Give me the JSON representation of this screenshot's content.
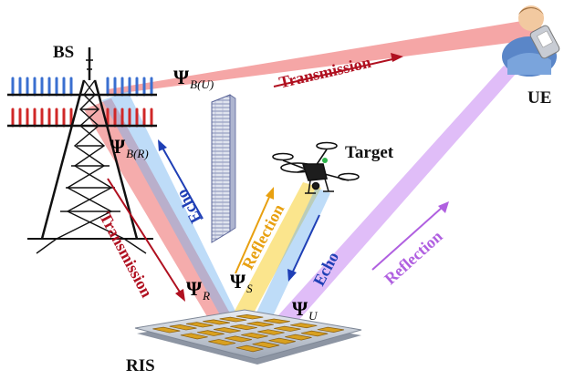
{
  "nodes": {
    "bs": "BS",
    "ue": "UE",
    "target": "Target",
    "ris": "RIS"
  },
  "channels": {
    "psi_symbol": "Ψ",
    "bu": "B(U)",
    "br": "B(R)",
    "r": "R",
    "s": "S",
    "u": "U"
  },
  "flows": {
    "transmission_top": "Transmission",
    "transmission_left": "Transmission",
    "echo_left": "Echo",
    "reflection_mid": "Reflection",
    "echo_right": "Echo",
    "reflection_right": "Reflection"
  },
  "colors": {
    "transmission": "#b01020",
    "echo": "#1f3fb5",
    "reflection_mid": "#e8a010",
    "reflection_right": "#b060e0",
    "beam_red": "#e83a3a",
    "beam_blue": "#6fb2f0",
    "beam_yellow": "#f7d030",
    "beam_purple": "#c27cf2",
    "ris_frame": "#b8c0cc",
    "ris_element": "#d8a020"
  },
  "icons": [
    "base-station-tower-icon",
    "ue-user-phone-icon",
    "drone-target-icon",
    "ris-panel-icon",
    "obstacle-wall-icon"
  ]
}
